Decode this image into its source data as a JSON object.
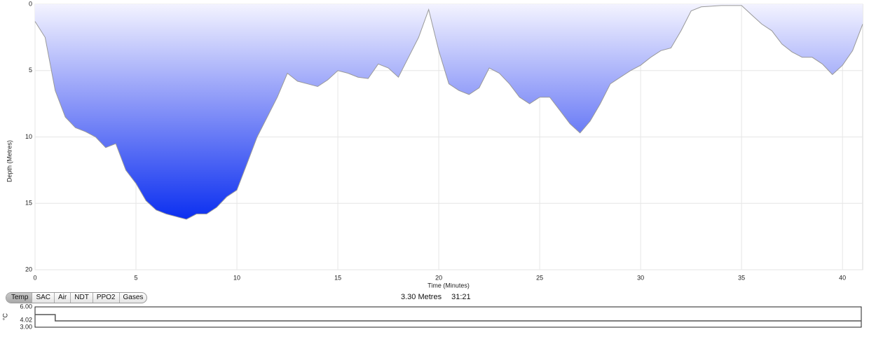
{
  "chart_data": [
    {
      "type": "area",
      "y_label": "Depth (Metres)",
      "x_label": "Time (Minutes)",
      "xlim": [
        0,
        41
      ],
      "ylim": [
        0,
        20
      ],
      "y_inverted": true,
      "grid": true,
      "xticks": [
        0,
        5,
        10,
        15,
        20,
        25,
        30,
        35,
        40
      ],
      "yticks": [
        0,
        5,
        10,
        15,
        20
      ],
      "x": [
        0,
        0.5,
        1,
        1.5,
        2,
        2.5,
        3,
        3.5,
        4,
        4.5,
        5,
        5.5,
        6,
        6.5,
        7,
        7.5,
        8,
        8.5,
        9,
        9.5,
        10,
        10.5,
        11,
        11.5,
        12,
        12.5,
        13,
        13.5,
        14,
        14.5,
        15,
        15.5,
        16,
        16.5,
        17,
        17.5,
        18,
        18.5,
        19,
        19.5,
        20,
        20.5,
        21,
        21.5,
        22,
        22.5,
        23,
        23.5,
        24,
        24.5,
        25,
        25.5,
        26,
        26.5,
        27,
        27.5,
        28,
        28.5,
        29,
        29.5,
        30,
        30.5,
        31,
        31.5,
        32,
        32.5,
        33,
        34,
        35,
        35.5,
        36,
        36.5,
        37,
        37.5,
        38,
        38.5,
        39,
        39.5,
        40,
        40.5,
        41
      ],
      "series": [
        {
          "color": "#999999",
          "values": [
            1.3,
            2.5,
            6.5,
            8.5,
            9.3,
            9.6,
            10,
            10.8,
            10.5,
            12.5,
            13.5,
            14.8,
            15.5,
            15.8,
            16,
            16.2,
            15.8,
            15.8,
            15.3,
            14.5,
            14,
            12,
            10,
            8.5,
            7,
            5.2,
            5.8,
            6,
            6.2,
            5.7,
            5,
            5.2,
            5.5,
            5.6,
            4.5,
            4.8,
            5.5,
            4,
            2.5,
            0.4,
            3.5,
            6,
            6.5,
            6.8,
            6.3,
            4.8,
            5.2,
            6,
            7,
            7.5,
            7,
            7,
            8,
            9,
            9.7,
            8.8,
            7.5,
            6,
            5.5,
            5,
            4.6,
            4,
            3.5,
            3.3,
            2,
            0.5,
            0.2,
            0.1,
            0.1,
            0.8,
            1.5,
            2,
            3,
            3.6,
            4,
            4,
            4.5,
            5.3,
            4.6,
            3.5,
            1.5
          ]
        }
      ]
    },
    {
      "type": "line",
      "y_label": "°C",
      "xlim": [
        0,
        41
      ],
      "ylim": [
        3,
        6
      ],
      "yticks": [
        {
          "value": 6,
          "label": "6.00"
        },
        {
          "value": 4.02,
          "label": "4.02"
        },
        {
          "value": 3,
          "label": "3.00"
        }
      ],
      "x": [
        0,
        1,
        1,
        41
      ],
      "series": [
        {
          "color": "#555555",
          "values": [
            4.86,
            4.86,
            3.93,
            3.93
          ]
        }
      ]
    }
  ],
  "tabs": [
    "Temp",
    "SAC",
    "Air",
    "NDT",
    "PPO2",
    "Gases"
  ],
  "status": {
    "depth": "3.30 Metres",
    "time": "31:21"
  }
}
